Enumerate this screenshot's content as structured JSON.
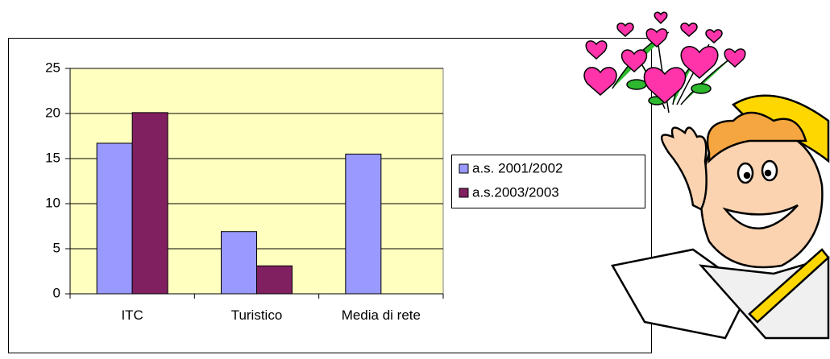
{
  "chart_data": {
    "type": "bar",
    "categories": [
      "ITC",
      "Turistico",
      "Media di rete"
    ],
    "series": [
      {
        "name": "a.s. 2001/2002",
        "color": "#9999ff",
        "values": [
          16.7,
          6.9,
          15.5
        ]
      },
      {
        "name": "a.s.2003/2003",
        "color": "#802060",
        "values": [
          20.1,
          3.1,
          null
        ]
      }
    ],
    "ylim": [
      0,
      25
    ],
    "yticks": [
      0,
      5,
      10,
      15,
      20,
      25
    ],
    "grid": true,
    "legend": "right"
  }
}
